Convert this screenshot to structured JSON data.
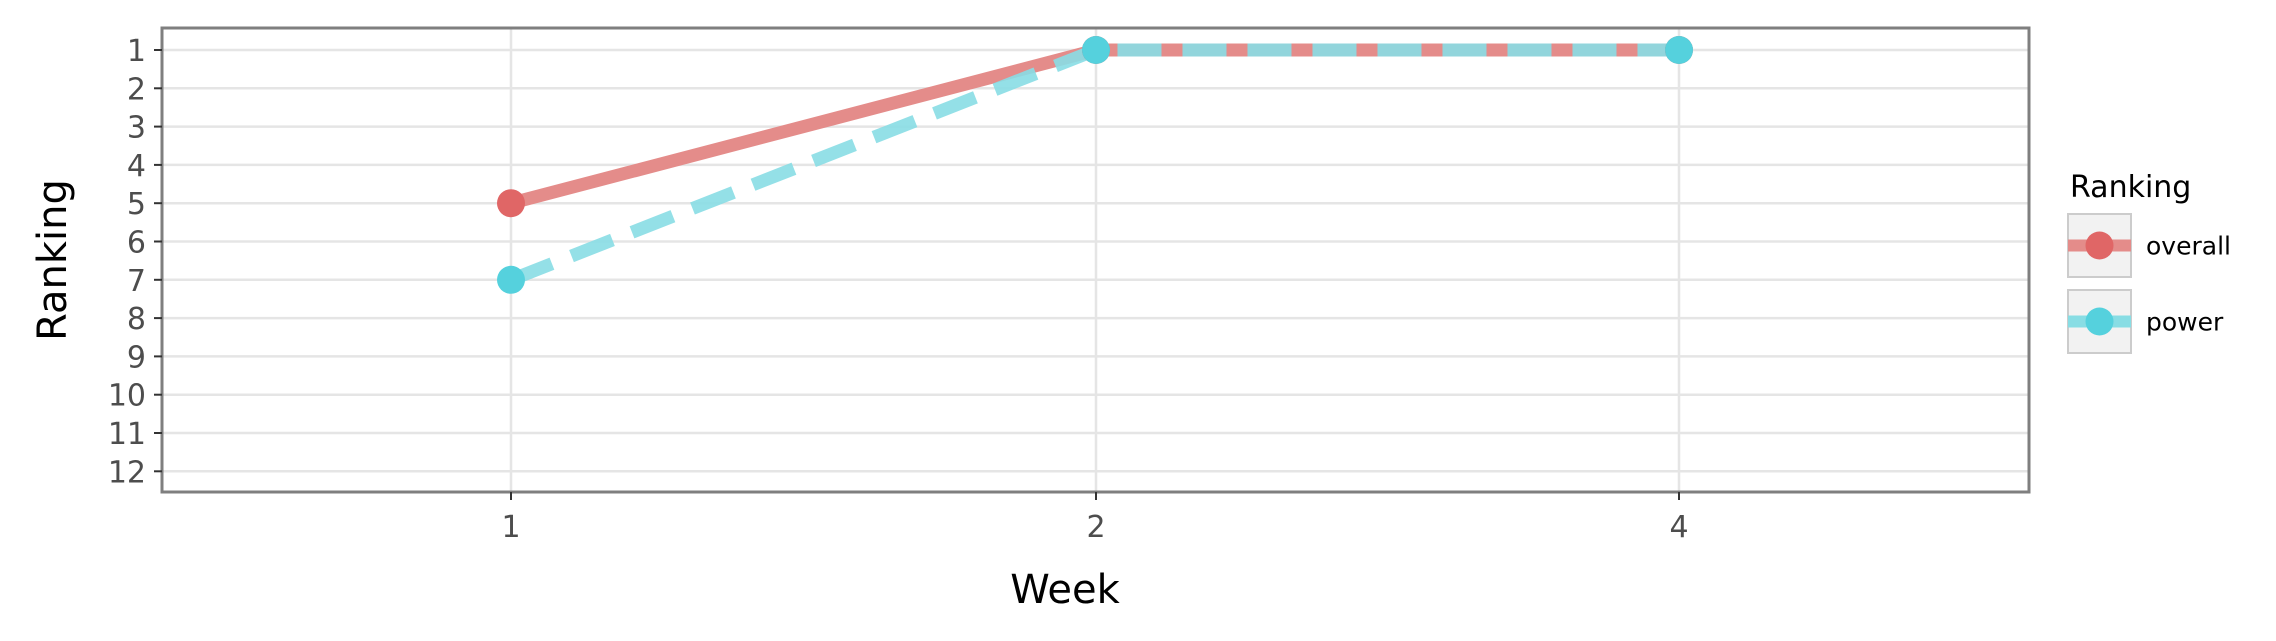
{
  "chart_data": {
    "type": "line",
    "x_categories": [
      "1",
      "2",
      "4"
    ],
    "xlabel": "Week",
    "ylabel": "Ranking",
    "y_ticks": [
      1,
      2,
      3,
      4,
      5,
      6,
      7,
      8,
      9,
      10,
      11,
      12
    ],
    "y_reversed": true,
    "grid": true,
    "legend": {
      "title": "Ranking",
      "placement": "right"
    },
    "series": [
      {
        "name": "overall",
        "color": "#E06666",
        "line_color": "#E48C8A",
        "line_style": "solid",
        "values": [
          5,
          1,
          1
        ]
      },
      {
        "name": "power",
        "color": "#55D1DD",
        "line_color": "#88DDE4",
        "line_style": "dashed",
        "values": [
          7,
          1,
          1
        ]
      }
    ]
  }
}
